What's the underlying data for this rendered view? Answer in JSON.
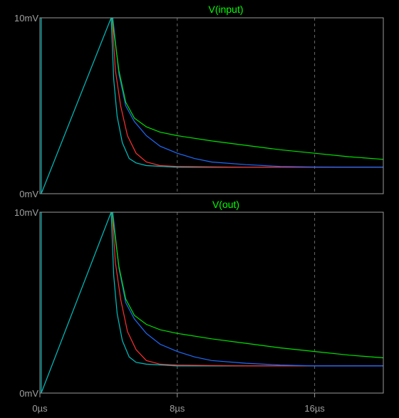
{
  "colors": {
    "background": "#000000",
    "frame": "#9a9a9a",
    "grid": "#6b6b6b",
    "title": "#00ff00",
    "axis_text": "#a0a0a0"
  },
  "chart_data": [
    {
      "type": "line",
      "title": "V(input)",
      "ylabel_top": "10mV",
      "ylabel_bottom": "0mV",
      "ylim": [
        0,
        10
      ],
      "xlim": [
        0,
        20
      ],
      "x_unit": "µs",
      "y_unit": "mV",
      "grid": "vertical dashed at x=8,16",
      "series": [
        {
          "color": "#00c0c0",
          "points": [
            [
              0.08,
              10
            ],
            [
              0.08,
              0
            ],
            [
              4.15,
              10
            ],
            [
              4.3,
              6.5
            ],
            [
              4.5,
              4.4
            ],
            [
              4.8,
              2.9
            ],
            [
              5.2,
              2.0
            ],
            [
              5.6,
              1.75
            ],
            [
              6.2,
              1.6
            ],
            [
              8,
              1.5
            ],
            [
              12,
              1.5
            ],
            [
              16,
              1.5
            ],
            [
              20,
              1.5
            ]
          ]
        },
        {
          "color": "#ff3030",
          "points": [
            [
              4.2,
              10
            ],
            [
              4.4,
              7.0
            ],
            [
              4.7,
              5.0
            ],
            [
              5.1,
              3.3
            ],
            [
              5.6,
              2.3
            ],
            [
              6.2,
              1.8
            ],
            [
              7,
              1.6
            ],
            [
              8,
              1.55
            ],
            [
              12,
              1.5
            ],
            [
              16,
              1.5
            ],
            [
              20,
              1.5
            ]
          ]
        },
        {
          "color": "#1e6cff",
          "points": [
            [
              4.25,
              10
            ],
            [
              4.6,
              6.8
            ],
            [
              5,
              5.0
            ],
            [
              5.5,
              4.1
            ],
            [
              6.2,
              3.3
            ],
            [
              7,
              2.7
            ],
            [
              8,
              2.3
            ],
            [
              9,
              2.0
            ],
            [
              10,
              1.8
            ],
            [
              12,
              1.65
            ],
            [
              14,
              1.55
            ],
            [
              16,
              1.52
            ],
            [
              20,
              1.5
            ]
          ]
        },
        {
          "color": "#00e000",
          "points": [
            [
              4.2,
              10
            ],
            [
              4.6,
              7.0
            ],
            [
              5,
              5.2
            ],
            [
              5.5,
              4.3
            ],
            [
              6.2,
              3.8
            ],
            [
              7,
              3.5
            ],
            [
              8,
              3.3
            ],
            [
              10,
              3.0
            ],
            [
              12,
              2.75
            ],
            [
              14,
              2.5
            ],
            [
              16,
              2.3
            ],
            [
              18,
              2.1
            ],
            [
              20,
              1.95
            ]
          ]
        }
      ]
    },
    {
      "type": "line",
      "title": "V(out)",
      "ylabel_top": "10mV",
      "ylabel_bottom": "0mV",
      "ylim": [
        0,
        10
      ],
      "xlim": [
        0,
        20
      ],
      "x_unit": "µs",
      "y_unit": "mV",
      "xticks": [
        {
          "value": 0,
          "label": "0µs"
        },
        {
          "value": 8,
          "label": "8µs"
        },
        {
          "value": 16,
          "label": "16µs"
        }
      ],
      "grid": "vertical dashed at x=8,16",
      "series": [
        {
          "color": "#00c0c0",
          "points": [
            [
              0.08,
              10
            ],
            [
              0.08,
              0
            ],
            [
              4.15,
              10
            ],
            [
              4.3,
              6.5
            ],
            [
              4.5,
              4.4
            ],
            [
              4.8,
              2.9
            ],
            [
              5.2,
              2.0
            ],
            [
              5.6,
              1.7
            ],
            [
              6.2,
              1.6
            ],
            [
              8,
              1.5
            ],
            [
              12,
              1.5
            ],
            [
              16,
              1.5
            ],
            [
              20,
              1.5
            ]
          ]
        },
        {
          "color": "#ff3030",
          "points": [
            [
              4.2,
              10
            ],
            [
              4.4,
              7.2
            ],
            [
              4.7,
              5.2
            ],
            [
              5.1,
              3.4
            ],
            [
              5.6,
              2.4
            ],
            [
              6.2,
              1.8
            ],
            [
              7,
              1.6
            ],
            [
              8,
              1.55
            ],
            [
              12,
              1.5
            ],
            [
              16,
              1.5
            ],
            [
              20,
              1.5
            ]
          ]
        },
        {
          "color": "#1e6cff",
          "points": [
            [
              4.25,
              10
            ],
            [
              4.6,
              6.9
            ],
            [
              5,
              5.0
            ],
            [
              5.5,
              4.1
            ],
            [
              6.2,
              3.3
            ],
            [
              7,
              2.7
            ],
            [
              8,
              2.3
            ],
            [
              9,
              2.0
            ],
            [
              10,
              1.8
            ],
            [
              12,
              1.65
            ],
            [
              14,
              1.55
            ],
            [
              16,
              1.5
            ],
            [
              20,
              1.5
            ]
          ]
        },
        {
          "color": "#00e000",
          "points": [
            [
              4.2,
              10
            ],
            [
              4.6,
              7.0
            ],
            [
              5,
              5.2
            ],
            [
              5.5,
              4.3
            ],
            [
              6.2,
              3.8
            ],
            [
              7,
              3.5
            ],
            [
              8,
              3.3
            ],
            [
              10,
              3.0
            ],
            [
              12,
              2.75
            ],
            [
              14,
              2.5
            ],
            [
              16,
              2.3
            ],
            [
              18,
              2.1
            ],
            [
              20,
              1.95
            ]
          ]
        }
      ]
    }
  ]
}
